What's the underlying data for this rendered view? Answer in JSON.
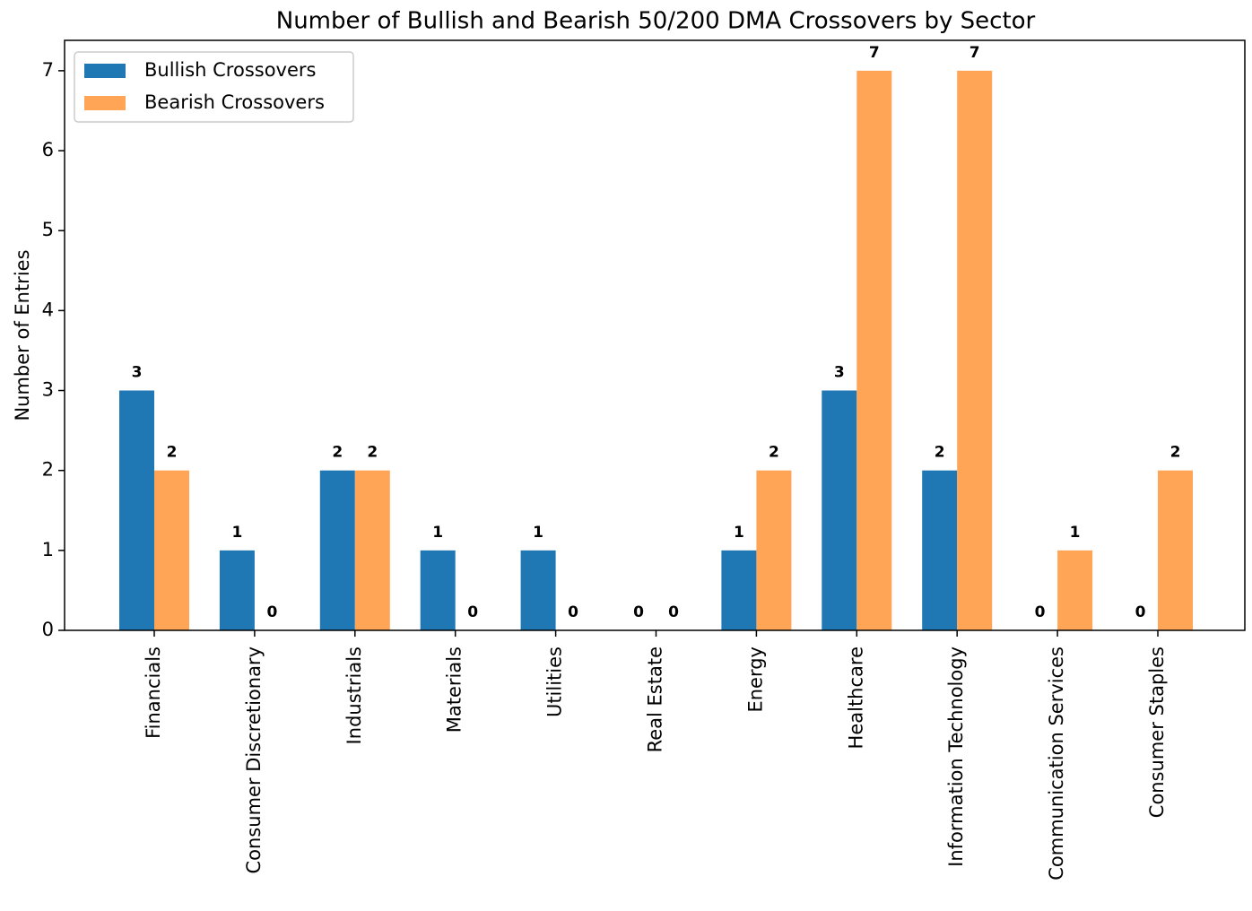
{
  "chart_data": {
    "type": "bar",
    "title": "Number of Bullish and Bearish 50/200 DMA Crossovers by Sector",
    "y_label": "Number of Entries",
    "categories": [
      "Financials",
      "Consumer Discretionary",
      "Industrials",
      "Materials",
      "Utilities",
      "Real Estate",
      "Energy",
      "Healthcare",
      "Information Technology",
      "Communication Services",
      "Consumer Staples"
    ],
    "series": [
      {
        "name": "Bullish Crossovers",
        "color": "#1f77b4",
        "values": [
          3,
          1,
          2,
          1,
          1,
          0,
          1,
          3,
          2,
          0,
          0
        ]
      },
      {
        "name": "Bearish Crossovers",
        "color": "#ffa555",
        "values": [
          2,
          0,
          2,
          0,
          0,
          0,
          2,
          7,
          7,
          1,
          2
        ]
      }
    ],
    "ylim": [
      0,
      7.38
    ],
    "yticks": [
      0,
      1,
      2,
      3,
      4,
      5,
      6,
      7
    ],
    "legend": "upper left",
    "grid": false
  }
}
